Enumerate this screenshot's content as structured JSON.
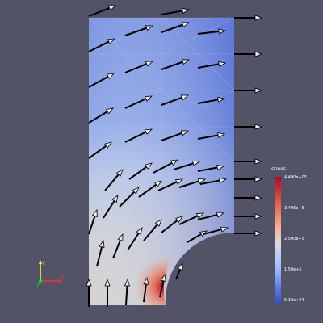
{
  "viewport": {
    "background": "#525367",
    "mesh_top_color": "#7c96e2",
    "mesh_right_color": "#4f6bd4",
    "mesh_bottom_color": "#d9cdc6",
    "hotspot_color": "#c8302f"
  },
  "legend": {
    "title": "stress",
    "ticks": [
      "4.490e+05",
      "3.496e+5",
      "2.500e+5",
      "1.50e+5",
      "5.10e+04"
    ],
    "colormap": "cool-to-warm"
  },
  "axes": {
    "x": "X",
    "y": "Y",
    "z": "Z",
    "x_color": "#ff2c2c",
    "y_color": "#ffff44",
    "z_color": "#22dd22"
  },
  "arrows": {
    "color": "#000000",
    "fill": "#eeeeee",
    "icon": "vector-glyph"
  }
}
